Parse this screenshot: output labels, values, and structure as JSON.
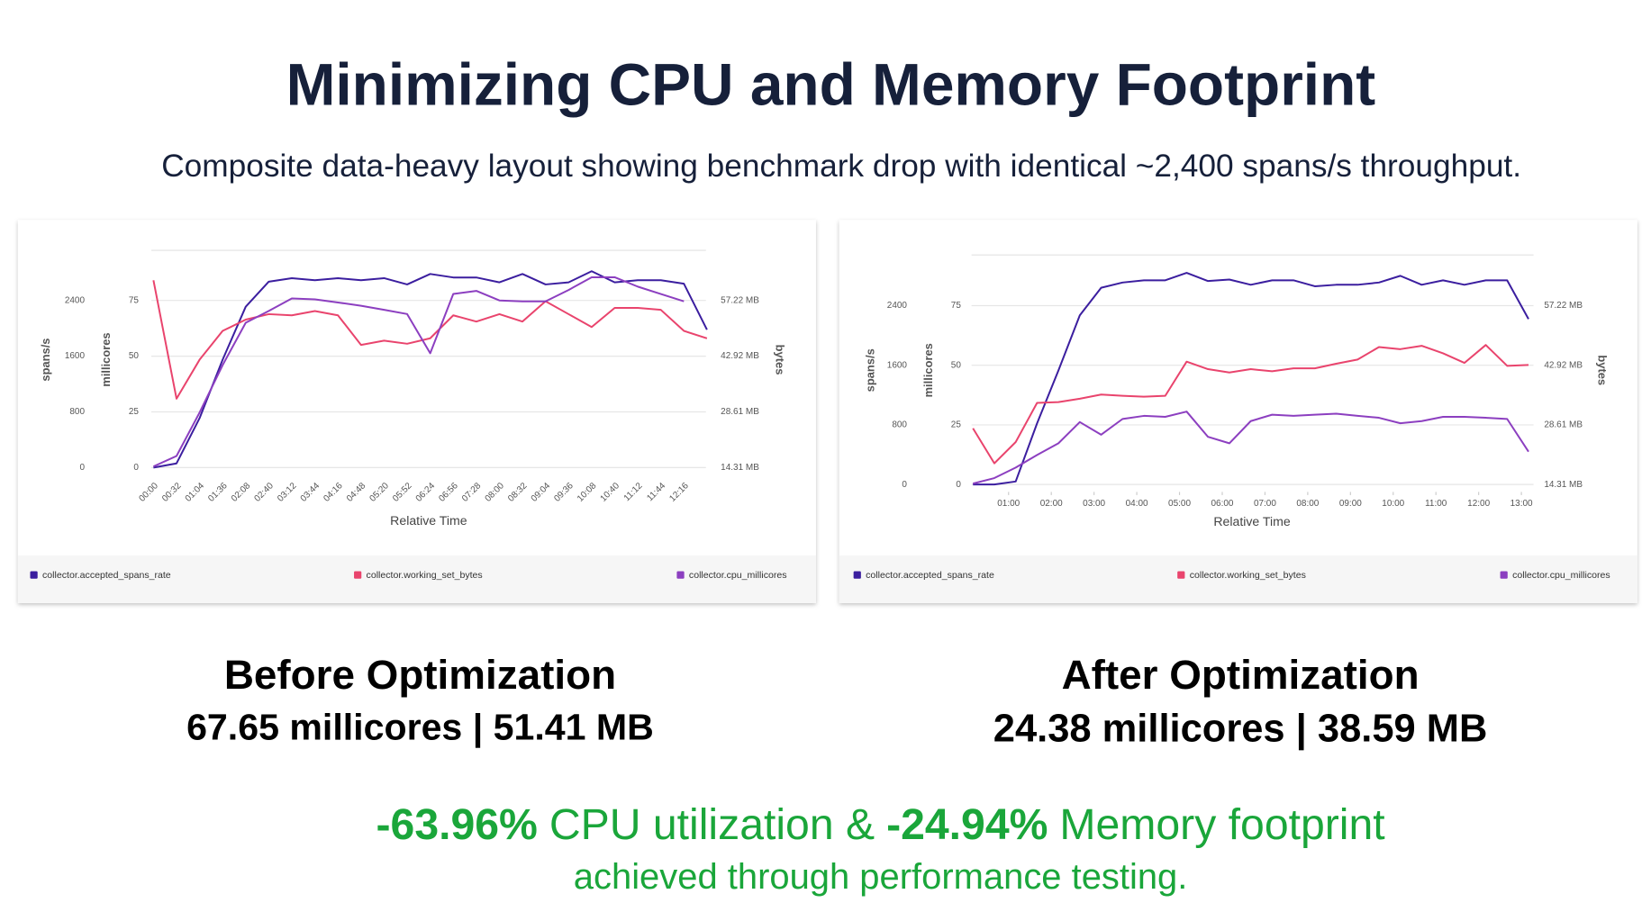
{
  "title": "Minimizing CPU and Memory Footprint",
  "subtitle": "Composite data-heavy layout showing benchmark drop with identical ~2,400 spans/s throughput.",
  "chart_data": [
    {
      "type": "line",
      "xlabel": "Relative Time",
      "categories": [
        "00:00",
        "00:32",
        "01:04",
        "01:36",
        "02:08",
        "02:40",
        "03:12",
        "03:44",
        "04:16",
        "04:48",
        "05:20",
        "05:52",
        "06:24",
        "06:56",
        "07:28",
        "08:00",
        "08:32",
        "09:04",
        "09:36",
        "10:08",
        "10:40",
        "11:12",
        "11:44",
        "12:16",
        null
      ],
      "ylabel": "spans/s",
      "ylim": [
        -120,
        3120
      ],
      "yticks": [
        0,
        800,
        1600,
        2400
      ],
      "y2label": "millicores",
      "y2lim": [
        -3.75,
        97.5
      ],
      "y2ticks": [
        0,
        25,
        50,
        75
      ],
      "y3label": "bytes",
      "y3lim": [
        12.16,
        70.09
      ],
      "y3ticks": [
        {
          "value": 14.31,
          "label": "14.31 MB"
        },
        {
          "value": 28.61,
          "label": "28.61 MB"
        },
        {
          "value": 42.92,
          "label": "42.92 MB"
        },
        {
          "value": 57.22,
          "label": "57.22 MB"
        }
      ],
      "grid": true,
      "legend": "bottom",
      "series": [
        {
          "name": "collector.accepted_spans_rate",
          "color": "#3b1e9f",
          "values": [
            0,
            60,
            710,
            1550,
            2310,
            2670,
            2720,
            2690,
            2720,
            2690,
            2720,
            2630,
            2780,
            2730,
            2730,
            2660,
            2780,
            2630,
            2660,
            2820,
            2660,
            2690,
            2690,
            2640,
            1980
          ]
        },
        {
          "name": "collector.working_set_bytes",
          "color": "#e9446d",
          "axis": "y3",
          "values": [
            62.4,
            32.0,
            42.0,
            49.4,
            52.3,
            53.7,
            53.4,
            54.5,
            53.4,
            45.8,
            46.9,
            46.1,
            47.5,
            53.4,
            51.8,
            53.7,
            51.8,
            57.0,
            53.7,
            50.4,
            55.3,
            55.3,
            54.8,
            49.4,
            47.5
          ]
        },
        {
          "name": "collector.cpu_millicores",
          "color": "#8c3fc0",
          "axis": "y2",
          "values": [
            0.5,
            5.2,
            24.7,
            46.0,
            65.0,
            70.3,
            75.9,
            75.5,
            74.1,
            72.6,
            70.8,
            68.9,
            51.3,
            77.9,
            79.3,
            75.0,
            74.6,
            74.6,
            79.7,
            85.4,
            85.4,
            81.2,
            77.9,
            74.6,
            null
          ]
        }
      ]
    },
    {
      "type": "line",
      "xlabel": "Relative Time",
      "x": [
        10,
        40,
        70,
        100,
        130,
        160,
        190,
        220,
        250,
        280,
        310,
        340,
        370,
        400,
        430,
        460,
        490,
        520,
        550,
        580,
        610,
        640,
        670,
        700,
        730,
        760,
        790
      ],
      "xlim": [
        0,
        800
      ],
      "xticks": [
        {
          "value": 60,
          "label": "01:00"
        },
        {
          "value": 120,
          "label": "02:00"
        },
        {
          "value": 180,
          "label": "03:00"
        },
        {
          "value": 240,
          "label": "04:00"
        },
        {
          "value": 300,
          "label": "05:00"
        },
        {
          "value": 360,
          "label": "06:00"
        },
        {
          "value": 420,
          "label": "07:00"
        },
        {
          "value": 480,
          "label": "08:00"
        },
        {
          "value": 540,
          "label": "09:00"
        },
        {
          "value": 600,
          "label": "10:00"
        },
        {
          "value": 660,
          "label": "11:00"
        },
        {
          "value": 720,
          "label": "12:00"
        },
        {
          "value": 780,
          "label": "13:00"
        }
      ],
      "ylabel": "spans/s",
      "ylim": [
        -100,
        3080
      ],
      "yticks": [
        0,
        800,
        1600,
        2400
      ],
      "y2label": "millicores",
      "y2lim": [
        -3.1,
        96.3
      ],
      "y2ticks": [
        0,
        25,
        50,
        75
      ],
      "y3label": "bytes",
      "y3lim": [
        12.53,
        69.41
      ],
      "y3ticks": [
        {
          "value": 14.31,
          "label": "14.31 MB"
        },
        {
          "value": 28.61,
          "label": "28.61 MB"
        },
        {
          "value": 42.92,
          "label": "42.92 MB"
        },
        {
          "value": 57.22,
          "label": "57.22 MB"
        }
      ],
      "grid": true,
      "legend": "bottom",
      "series": [
        {
          "name": "collector.accepted_spans_rate",
          "color": "#3b1e9f",
          "values": [
            0,
            0,
            40,
            820,
            1530,
            2270,
            2640,
            2710,
            2740,
            2740,
            2840,
            2730,
            2750,
            2680,
            2740,
            2740,
            2660,
            2680,
            2680,
            2710,
            2800,
            2680,
            2740,
            2680,
            2740,
            2740,
            2220
          ]
        },
        {
          "name": "collector.working_set_bytes",
          "color": "#e9446d",
          "axis": "y3",
          "values": [
            27.8,
            19.4,
            24.5,
            33.9,
            34.1,
            34.9,
            35.9,
            35.6,
            35.4,
            35.6,
            43.8,
            42.0,
            41.2,
            42.0,
            41.5,
            42.2,
            42.2,
            43.3,
            44.3,
            47.3,
            46.8,
            47.6,
            45.8,
            43.5,
            47.8,
            42.8,
            43.0
          ]
        },
        {
          "name": "collector.cpu_millicores",
          "color": "#8c3fc0",
          "axis": "y2",
          "values": [
            0.4,
            2.7,
            7.1,
            12.4,
            17.3,
            26.2,
            20.9,
            27.5,
            28.8,
            28.4,
            30.6,
            20.0,
            17.3,
            26.6,
            29.3,
            28.8,
            29.3,
            29.7,
            28.8,
            28.0,
            25.7,
            26.6,
            28.4,
            28.4,
            28.0,
            27.5,
            13.8
          ]
        }
      ]
    }
  ],
  "comparison": [
    {
      "heading": "Before Optimization",
      "metrics": "67.65 millicores | 51.41 MB"
    },
    {
      "heading": "After Optimization",
      "metrics": "24.38 millicores | 38.59 MB"
    }
  ],
  "summary": {
    "cpu_change": "-63.96%",
    "cpu_label": "CPU utilization &",
    "memory_change": "-24.94%",
    "memory_label": "Memory footprint",
    "note": "achieved through performance testing."
  }
}
